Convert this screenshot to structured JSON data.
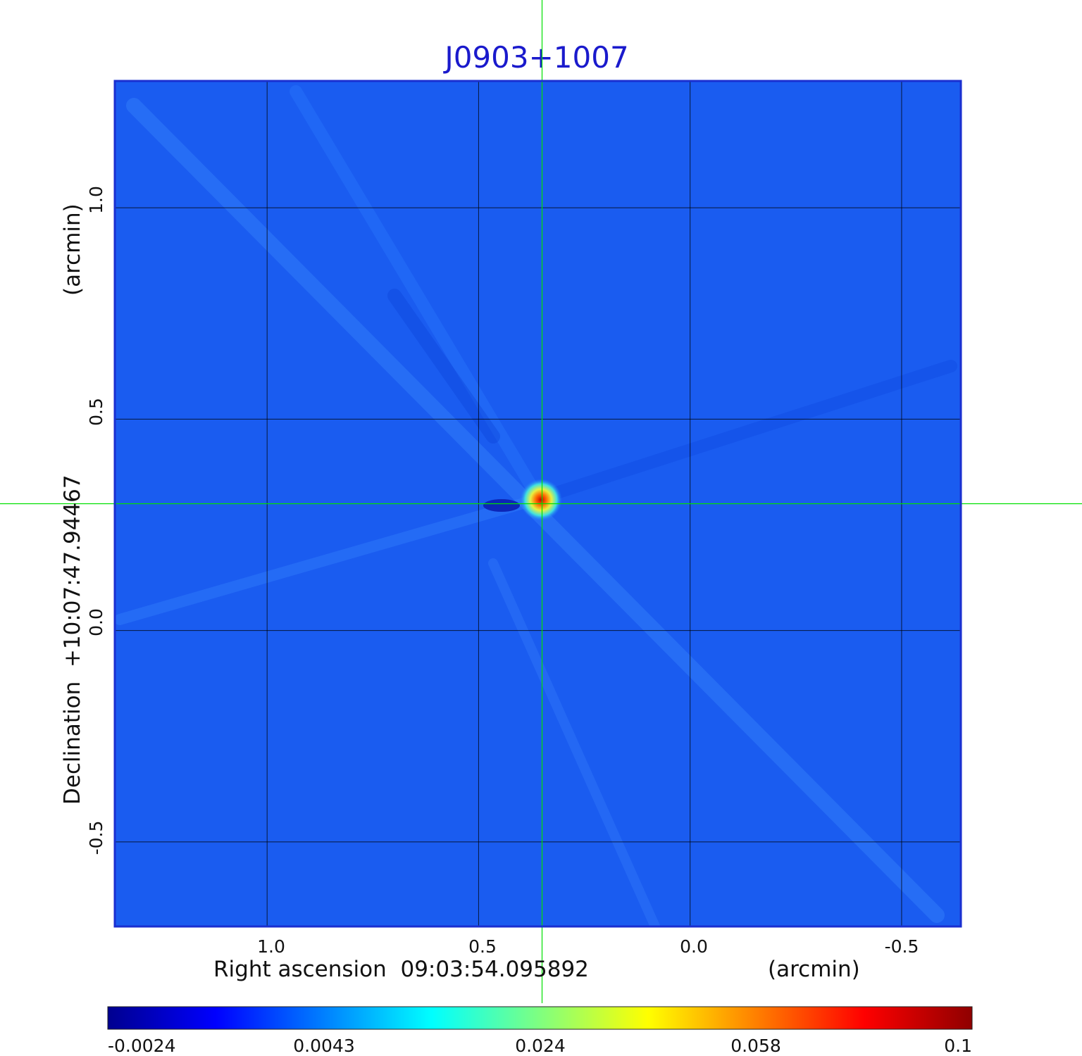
{
  "chart_data": {
    "type": "heatmap",
    "title": "J0903+1007",
    "title_color": "#1a1acc",
    "xlabel": "Right ascension  09:03:54.095892",
    "xlabel_unit": "(arcmin)",
    "ylabel": "Declination  +10:07:47.94467",
    "ylabel_unit": "(arcmin)",
    "x_axis": {
      "range": [
        1.36,
        -0.64
      ],
      "ticks": [
        1.0,
        0.5,
        0.0,
        -0.5
      ],
      "tick_labels": [
        "1.0",
        "0.5",
        "0.0",
        "-0.5"
      ]
    },
    "y_axis": {
      "range": [
        -0.7,
        1.3
      ],
      "ticks": [
        1.0,
        0.5,
        0.0,
        -0.5
      ],
      "tick_labels": [
        "1.0",
        "0.5",
        "0.0",
        "-0.5"
      ]
    },
    "grid": true,
    "crosshair": {
      "x": 0.35,
      "y": 0.3,
      "color": "#00e000"
    },
    "source": {
      "x": 0.35,
      "y": 0.3,
      "peak": 0.1
    },
    "background_level": 0.003,
    "colorbar": {
      "colormap": "jet",
      "range": [
        -0.0024,
        0.1
      ],
      "tick_labels": [
        "-0.0024",
        "0.0043",
        "0.024",
        "0.058",
        "0.1"
      ]
    }
  }
}
